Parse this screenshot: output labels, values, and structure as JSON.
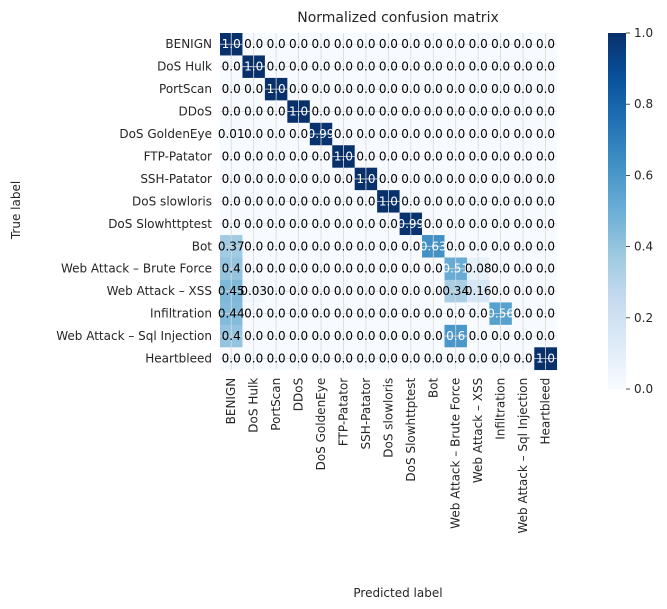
{
  "chart_data": {
    "type": "heatmap",
    "title": "Normalized confusion matrix",
    "xlabel": "Predicted label",
    "ylabel": "True label",
    "labels": [
      "BENIGN",
      "DoS Hulk",
      "PortScan",
      "DDoS",
      "DoS GoldenEye",
      "FTP-Patator",
      "SSH-Patator",
      "DoS slowloris",
      "DoS Slowhttptest",
      "Bot",
      "Web Attack – Brute Force",
      "Web Attack – XSS",
      "Infiltration",
      "Web Attack – Sql Injection",
      "Heartbleed"
    ],
    "cell_text": [
      [
        "1.0",
        "0.0",
        "0.0",
        "0.0",
        "0.0",
        "0.0",
        "0.0",
        "0.0",
        "0.0",
        "0.0",
        "0.0",
        "0.0",
        "0.0",
        "0.0",
        "0.0"
      ],
      [
        "0.0",
        "1.0",
        "0.0",
        "0.0",
        "0.0",
        "0.0",
        "0.0",
        "0.0",
        "0.0",
        "0.0",
        "0.0",
        "0.0",
        "0.0",
        "0.0",
        "0.0"
      ],
      [
        "0.0",
        "0.0",
        "1.0",
        "0.0",
        "0.0",
        "0.0",
        "0.0",
        "0.0",
        "0.0",
        "0.0",
        "0.0",
        "0.0",
        "0.0",
        "0.0",
        "0.0"
      ],
      [
        "0.0",
        "0.0",
        "0.0",
        "1.0",
        "0.0",
        "0.0",
        "0.0",
        "0.0",
        "0.0",
        "0.0",
        "0.0",
        "0.0",
        "0.0",
        "0.0",
        "0.0"
      ],
      [
        "0.01",
        "0.0",
        "0.0",
        "0.0",
        "0.99",
        "0.0",
        "0.0",
        "0.0",
        "0.0",
        "0.0",
        "0.0",
        "0.0",
        "0.0",
        "0.0",
        "0.0"
      ],
      [
        "0.0",
        "0.0",
        "0.0",
        "0.0",
        "0.0",
        "1.0",
        "0.0",
        "0.0",
        "0.0",
        "0.0",
        "0.0",
        "0.0",
        "0.0",
        "0.0",
        "0.0"
      ],
      [
        "0.0",
        "0.0",
        "0.0",
        "0.0",
        "0.0",
        "0.0",
        "1.0",
        "0.0",
        "0.0",
        "0.0",
        "0.0",
        "0.0",
        "0.0",
        "0.0",
        "0.0"
      ],
      [
        "0.0",
        "0.0",
        "0.0",
        "0.0",
        "0.0",
        "0.0",
        "0.0",
        "1.0",
        "0.0",
        "0.0",
        "0.0",
        "0.0",
        "0.0",
        "0.0",
        "0.0"
      ],
      [
        "0.0",
        "0.0",
        "0.0",
        "0.0",
        "0.0",
        "0.0",
        "0.0",
        "0.0",
        "0.99",
        "0.0",
        "0.0",
        "0.0",
        "0.0",
        "0.0",
        "0.0"
      ],
      [
        "0.37",
        "0.0",
        "0.0",
        "0.0",
        "0.0",
        "0.0",
        "0.0",
        "0.0",
        "0.0",
        "0.63",
        "0.0",
        "0.0",
        "0.0",
        "0.0",
        "0.0"
      ],
      [
        "0.4",
        "0.0",
        "0.0",
        "0.0",
        "0.0",
        "0.0",
        "0.0",
        "0.0",
        "0.0",
        "0.0",
        "0.51",
        "0.08",
        "0.0",
        "0.0",
        "0.0"
      ],
      [
        "0.45",
        "0.03",
        "0.0",
        "0.0",
        "0.0",
        "0.0",
        "0.0",
        "0.0",
        "0.0",
        "0.0",
        "0.34",
        "0.16",
        "0.0",
        "0.0",
        "0.0"
      ],
      [
        "0.44",
        "0.0",
        "0.0",
        "0.0",
        "0.0",
        "0.0",
        "0.0",
        "0.0",
        "0.0",
        "0.0",
        "0.0",
        "0.0",
        "0.56",
        "0.0",
        "0.0"
      ],
      [
        "0.4",
        "0.0",
        "0.0",
        "0.0",
        "0.0",
        "0.0",
        "0.0",
        "0.0",
        "0.0",
        "0.0",
        "0.6",
        "0.0",
        "0.0",
        "0.0",
        "0.0"
      ],
      [
        "0.0",
        "0.0",
        "0.0",
        "0.0",
        "0.0",
        "0.0",
        "0.0",
        "0.0",
        "0.0",
        "0.0",
        "0.0",
        "0.0",
        "0.0",
        "0.0",
        "1.0"
      ]
    ],
    "colorbar": {
      "range": [
        0.0,
        1.0
      ],
      "ticks": [
        "0.0",
        "0.2",
        "0.4",
        "0.6",
        "0.8",
        "1.0"
      ],
      "colormap": "Blues"
    },
    "grid": true
  }
}
